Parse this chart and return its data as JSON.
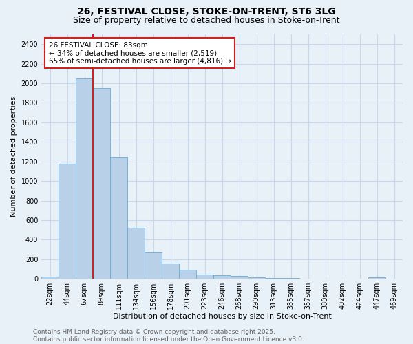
{
  "title": "26, FESTIVAL CLOSE, STOKE-ON-TRENT, ST6 3LG",
  "subtitle": "Size of property relative to detached houses in Stoke-on-Trent",
  "xlabel": "Distribution of detached houses by size in Stoke-on-Trent",
  "ylabel": "Number of detached properties",
  "categories": [
    "22sqm",
    "44sqm",
    "67sqm",
    "89sqm",
    "111sqm",
    "134sqm",
    "156sqm",
    "178sqm",
    "201sqm",
    "223sqm",
    "246sqm",
    "268sqm",
    "290sqm",
    "313sqm",
    "335sqm",
    "357sqm",
    "380sqm",
    "402sqm",
    "424sqm",
    "447sqm",
    "469sqm"
  ],
  "values": [
    25,
    1175,
    2050,
    1950,
    1250,
    520,
    270,
    155,
    90,
    45,
    35,
    30,
    15,
    10,
    5,
    3,
    2,
    2,
    1,
    15,
    0
  ],
  "bar_color": "#b8d0e8",
  "bar_edge_color": "#6aaad4",
  "grid_color": "#c8d8eb",
  "bg_color": "#e8f0f8",
  "annotation_text": "26 FESTIVAL CLOSE: 83sqm\n← 34% of detached houses are smaller (2,519)\n65% of semi-detached houses are larger (4,816) →",
  "annotation_box_color": "#ffffff",
  "annotation_box_edge": "#cc2222",
  "vline_color": "#cc2222",
  "ylim": [
    0,
    2500
  ],
  "yticks": [
    0,
    200,
    400,
    600,
    800,
    1000,
    1200,
    1400,
    1600,
    1800,
    2000,
    2200,
    2400
  ],
  "footer": "Contains HM Land Registry data © Crown copyright and database right 2025.\nContains public sector information licensed under the Open Government Licence v3.0.",
  "title_fontsize": 10,
  "subtitle_fontsize": 9,
  "axis_label_fontsize": 8,
  "tick_fontsize": 7,
  "annotation_fontsize": 7.5,
  "footer_fontsize": 6.5
}
